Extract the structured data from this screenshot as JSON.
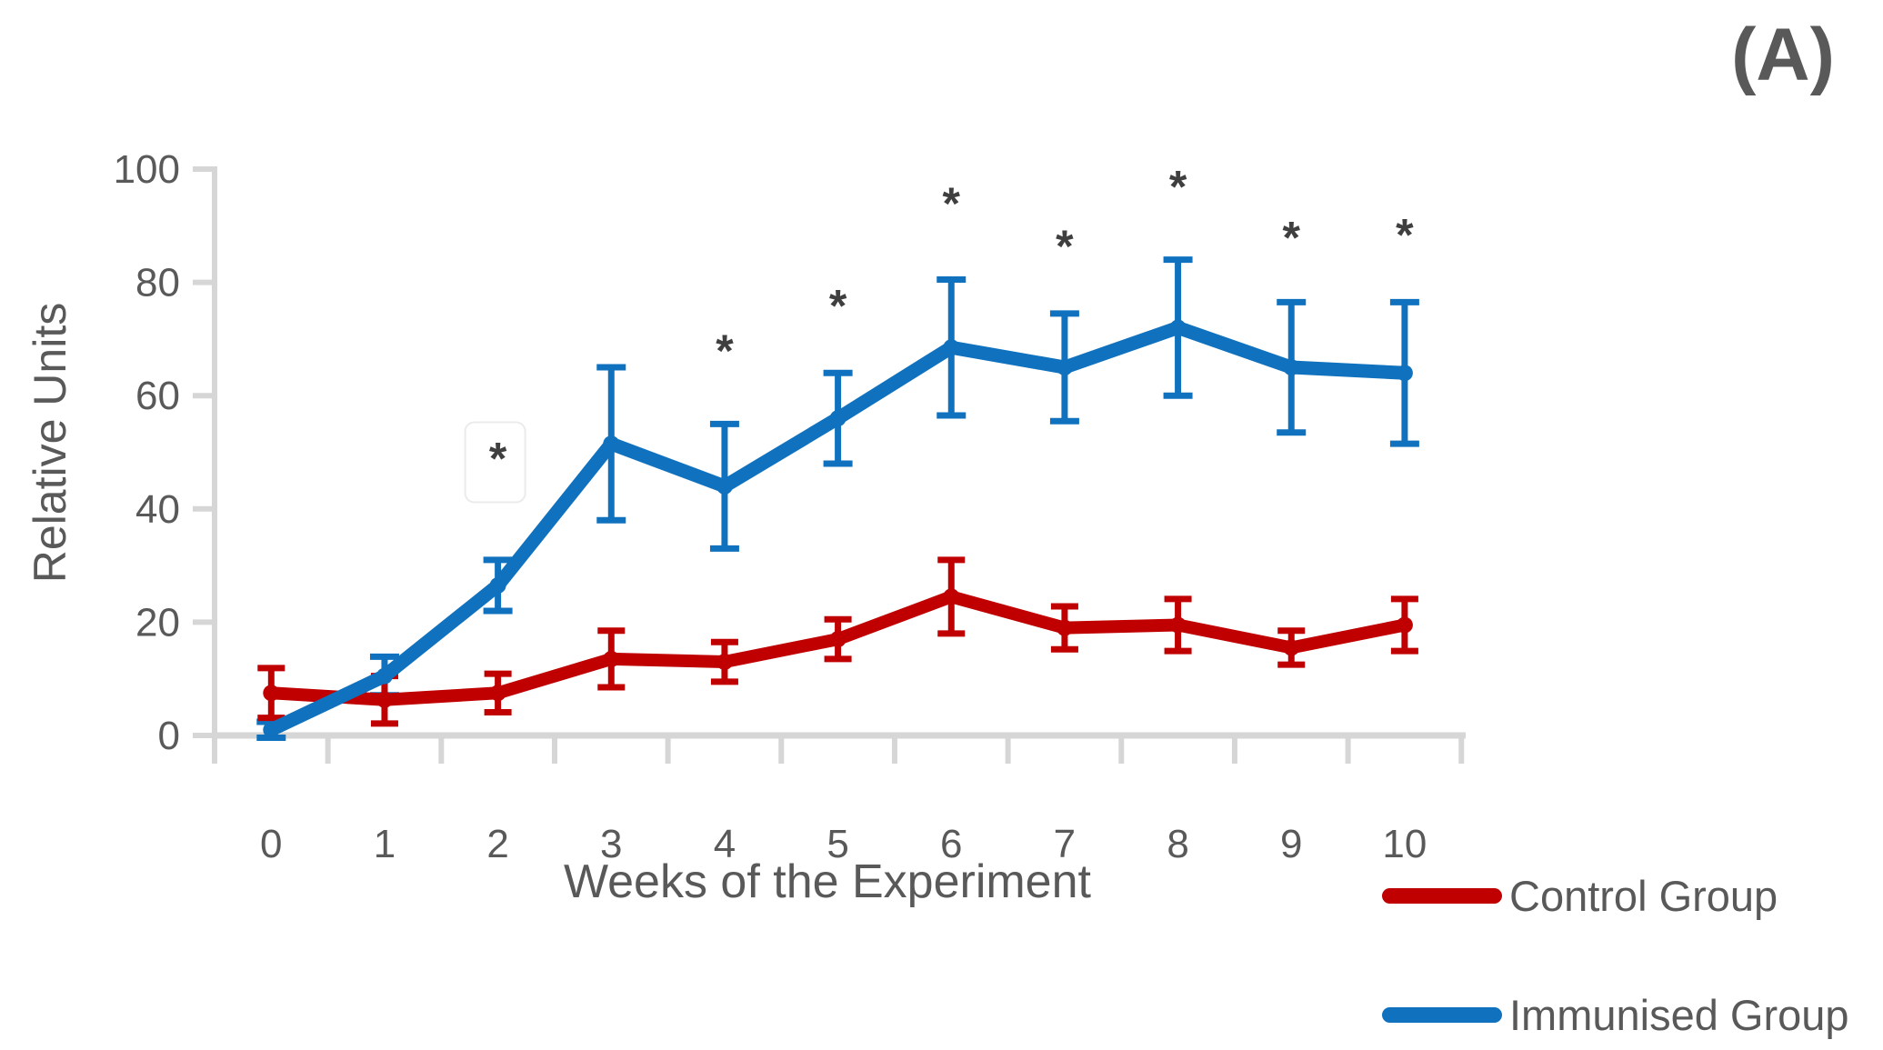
{
  "panel_label": "(A)",
  "colors": {
    "control": "#C00000",
    "immunised": "#1072BE",
    "axis": "#D6D6D6",
    "text": "#595959",
    "asterisk": "#3F3F3F",
    "note_box_border": "#EBEBEB"
  },
  "chart_data": {
    "type": "line",
    "title": "",
    "xlabel": "Weeks of the Experiment",
    "ylabel": "Relative Units",
    "x": [
      0,
      1,
      2,
      3,
      4,
      5,
      6,
      7,
      8,
      9,
      10
    ],
    "x_tick_labels": [
      "0",
      "1",
      "2",
      "3",
      "4",
      "5",
      "6",
      "7",
      "8",
      "9",
      "10"
    ],
    "y_ticks": [
      0,
      20,
      40,
      60,
      80,
      100
    ],
    "y_tick_labels": [
      "0",
      "20",
      "40",
      "60",
      "80",
      "100"
    ],
    "ylim": [
      0,
      100
    ],
    "grid": false,
    "legend_position": "bottom-right",
    "error_bars": true,
    "series": [
      {
        "name": "Control Group",
        "color_key": "control",
        "values": [
          7.5,
          6.3,
          7.5,
          13.5,
          13,
          17,
          24.5,
          19,
          19.5,
          15.5,
          19.5
        ],
        "errors": [
          4.4,
          4.2,
          3.4,
          5,
          3.5,
          3.5,
          6.5,
          3.8,
          4.6,
          3,
          4.6
        ]
      },
      {
        "name": "Immunised Group",
        "color_key": "immunised",
        "values": [
          1,
          10.5,
          26.5,
          51.5,
          44,
          56,
          68.5,
          65,
          72,
          65,
          64
        ],
        "errors": [
          1.4,
          3.4,
          4.5,
          13.5,
          11,
          8,
          12,
          9.5,
          12,
          11.5,
          12.5
        ]
      }
    ],
    "significance": {
      "symbol": "*",
      "points": [
        {
          "week": 2,
          "y": 50,
          "boxed": true
        },
        {
          "week": 4,
          "y": 69
        },
        {
          "week": 5,
          "y": 77
        },
        {
          "week": 6,
          "y": 95
        },
        {
          "week": 7,
          "y": 87.5
        },
        {
          "week": 8,
          "y": 98
        },
        {
          "week": 9,
          "y": 89
        },
        {
          "week": 10,
          "y": 89.5
        }
      ]
    }
  }
}
